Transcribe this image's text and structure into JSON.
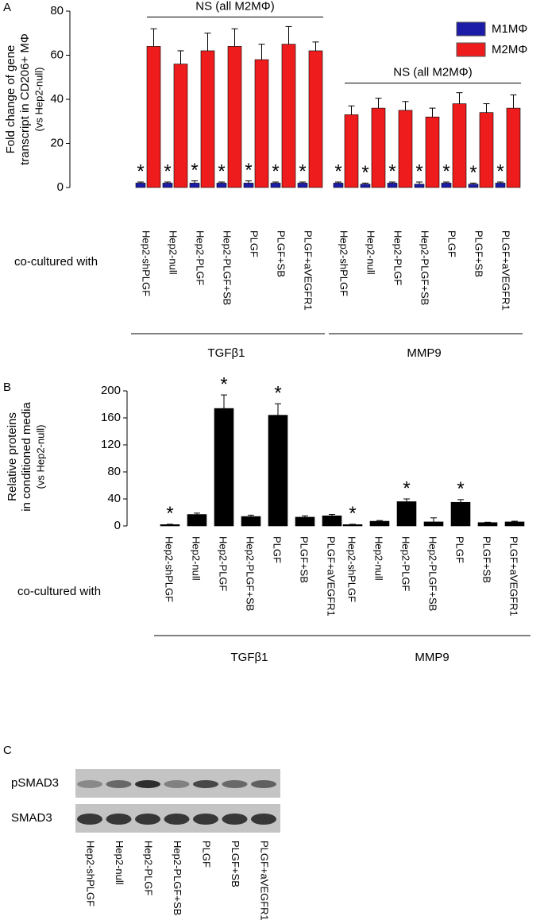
{
  "chart_data": [
    {
      "type": "bar",
      "panel": "A",
      "ylabel": [
        "Fold change of gene",
        "transcript in CD206+ MΦ",
        "(vs Hep2-null)"
      ],
      "xlabel": "co-cultured with",
      "categories": [
        "Hep2-shPLGF",
        "Hep2-null",
        "Hep2-PLGF",
        "Hep2-PLGF+SB",
        "PLGF",
        "PLGF+SB",
        "PLGF+aVEGFR1"
      ],
      "groups": [
        {
          "name": "TGFβ1",
          "bracket": "NS (all M2MΦ)"
        },
        {
          "name": "MMP9",
          "bracket": "NS (all M2MΦ)"
        }
      ],
      "series": [
        {
          "name": "M1MΦ",
          "color": "#1c1ca8",
          "values": [
            [
              2,
              2,
              2,
              2,
              2,
              2,
              2
            ],
            [
              2,
              1.5,
              2,
              1.5,
              2,
              1.5,
              2
            ]
          ],
          "errors": [
            [
              0.5,
              0.5,
              1,
              0.5,
              1,
              0.5,
              0.5
            ],
            [
              0.5,
              0.5,
              0.5,
              1,
              0.5,
              0.5,
              0.5
            ]
          ],
          "annotations": [
            [
              "*",
              "*",
              "*",
              "*",
              "*",
              "*",
              "*"
            ],
            [
              "*",
              "*",
              "*",
              "*",
              "*",
              "*",
              "*"
            ]
          ]
        },
        {
          "name": "M2MΦ",
          "color": "#ee1c1c",
          "values": [
            [
              64,
              56,
              62,
              64,
              58,
              65,
              62
            ],
            [
              33,
              36,
              35,
              32,
              38,
              34,
              36
            ]
          ],
          "errors": [
            [
              8,
              6,
              8,
              8,
              7,
              8,
              4
            ],
            [
              4,
              4.5,
              4,
              4,
              5,
              4,
              6
            ]
          ]
        }
      ],
      "ylim": [
        0,
        80
      ],
      "yticks": [
        0,
        20,
        40,
        60,
        80
      ],
      "legend": "upper right"
    },
    {
      "type": "bar",
      "panel": "B",
      "ylabel": [
        "Relative proteins",
        "in conditioned media",
        "(vs Hep2-null)"
      ],
      "xlabel": "co-cultured with",
      "categories": [
        "Hep2-shPLGF",
        "Hep2-null",
        "Hep2-PLGF",
        "Hep2-PLGF+SB",
        "PLGF",
        "PLGF+SB",
        "PLGF+aVEGFR1"
      ],
      "groups": [
        {
          "name": "TGFβ1"
        },
        {
          "name": "MMP9"
        }
      ],
      "series": [
        {
          "color": "#000000",
          "values": [
            [
              2,
              17,
              174,
              14,
              164,
              13,
              15
            ],
            [
              2,
              7,
              36,
              6,
              35,
              5,
              6
            ]
          ],
          "errors": [
            [
              0.5,
              2,
              20,
              2,
              17,
              2,
              2
            ],
            [
              0.5,
              1,
              4,
              6,
              4,
              0.5,
              1
            ]
          ],
          "annotations": [
            [
              "*",
              null,
              "*",
              null,
              "*",
              null,
              null
            ],
            [
              "*",
              null,
              "*",
              null,
              "*",
              null,
              null
            ]
          ]
        }
      ],
      "ylim": [
        0,
        200
      ],
      "yticks": [
        0,
        40,
        80,
        120,
        160,
        200
      ]
    }
  ],
  "blot": {
    "panel": "C",
    "rows": [
      "pSMAD3",
      "SMAD3"
    ],
    "lanes": [
      "Hep2-shPLGF",
      "Hep2-null",
      "Hep2-PLGF",
      "Hep2-PLGF+SB",
      "PLGF",
      "PLGF+SB",
      "PLGF+aVEGFR1"
    ]
  }
}
